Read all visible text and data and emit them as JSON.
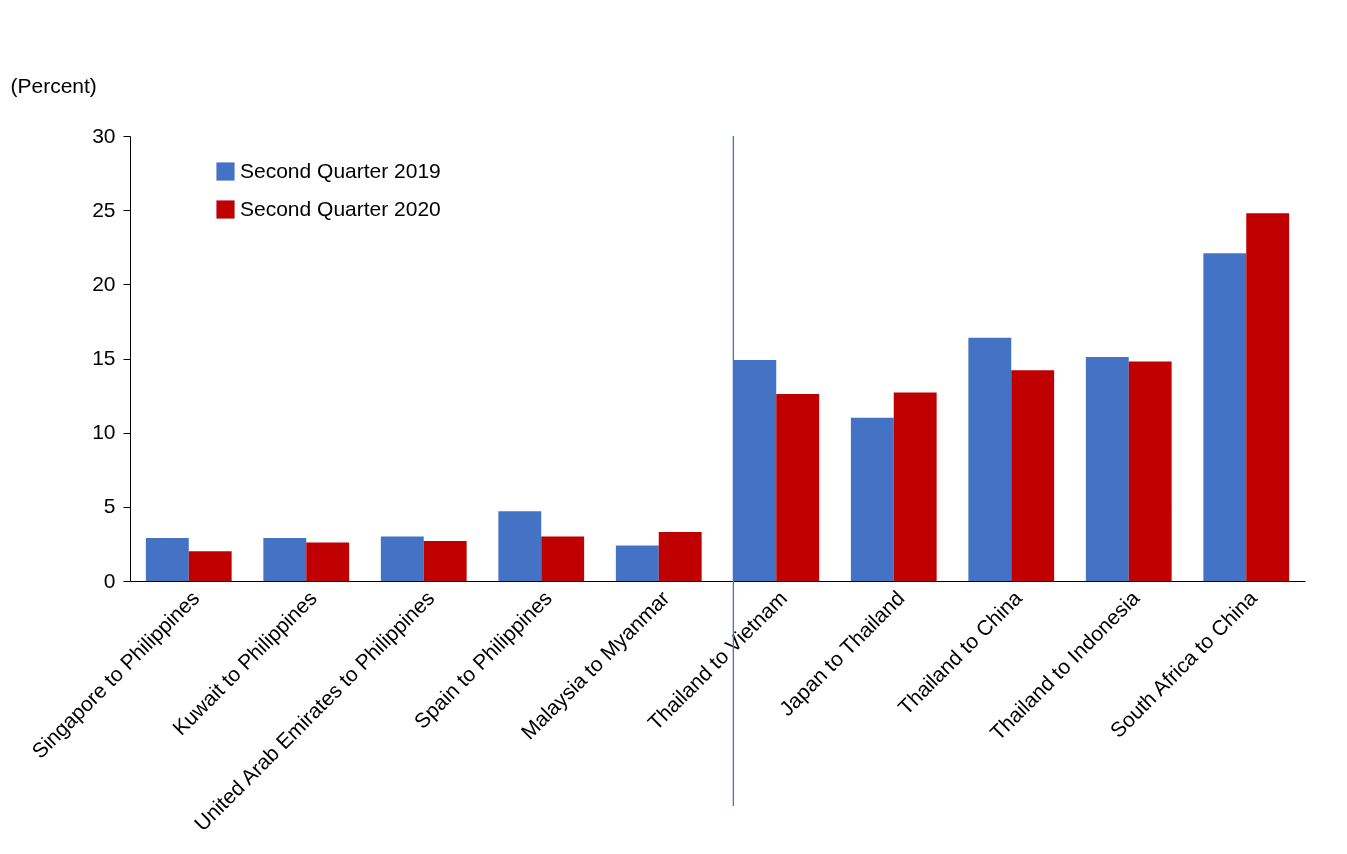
{
  "chart_data": {
    "type": "bar",
    "ylabel": "(Percent)",
    "categories": [
      "Singapore to Philippines",
      "Kuwait to Philippines",
      "United Arab Emirates to Philippines",
      "Spain to Philippines",
      "Malaysia to Myanmar",
      "Thailand to Vietnam",
      "Japan to Thailand",
      "Thailand to China",
      "Thailand to Indonesia",
      "South Africa to China"
    ],
    "series": [
      {
        "name": "Second Quarter 2019",
        "color": "#4472c4",
        "values": [
          2.9,
          2.9,
          3.0,
          4.7,
          2.4,
          14.9,
          11.0,
          16.4,
          15.1,
          22.1
        ]
      },
      {
        "name": "Second Quarter 2020",
        "color": "#c00000",
        "values": [
          2.0,
          2.6,
          2.7,
          3.0,
          3.3,
          12.6,
          12.7,
          14.2,
          14.8,
          24.8
        ]
      }
    ],
    "ylim": [
      0,
      30
    ],
    "yticks": [
      0,
      5,
      10,
      15,
      20,
      25,
      30
    ],
    "grid": false,
    "legend": "top left",
    "ref_lines": [
      {
        "axis": "x",
        "value": "Thailand to Vietnam",
        "color": "#4472c4"
      }
    ]
  }
}
